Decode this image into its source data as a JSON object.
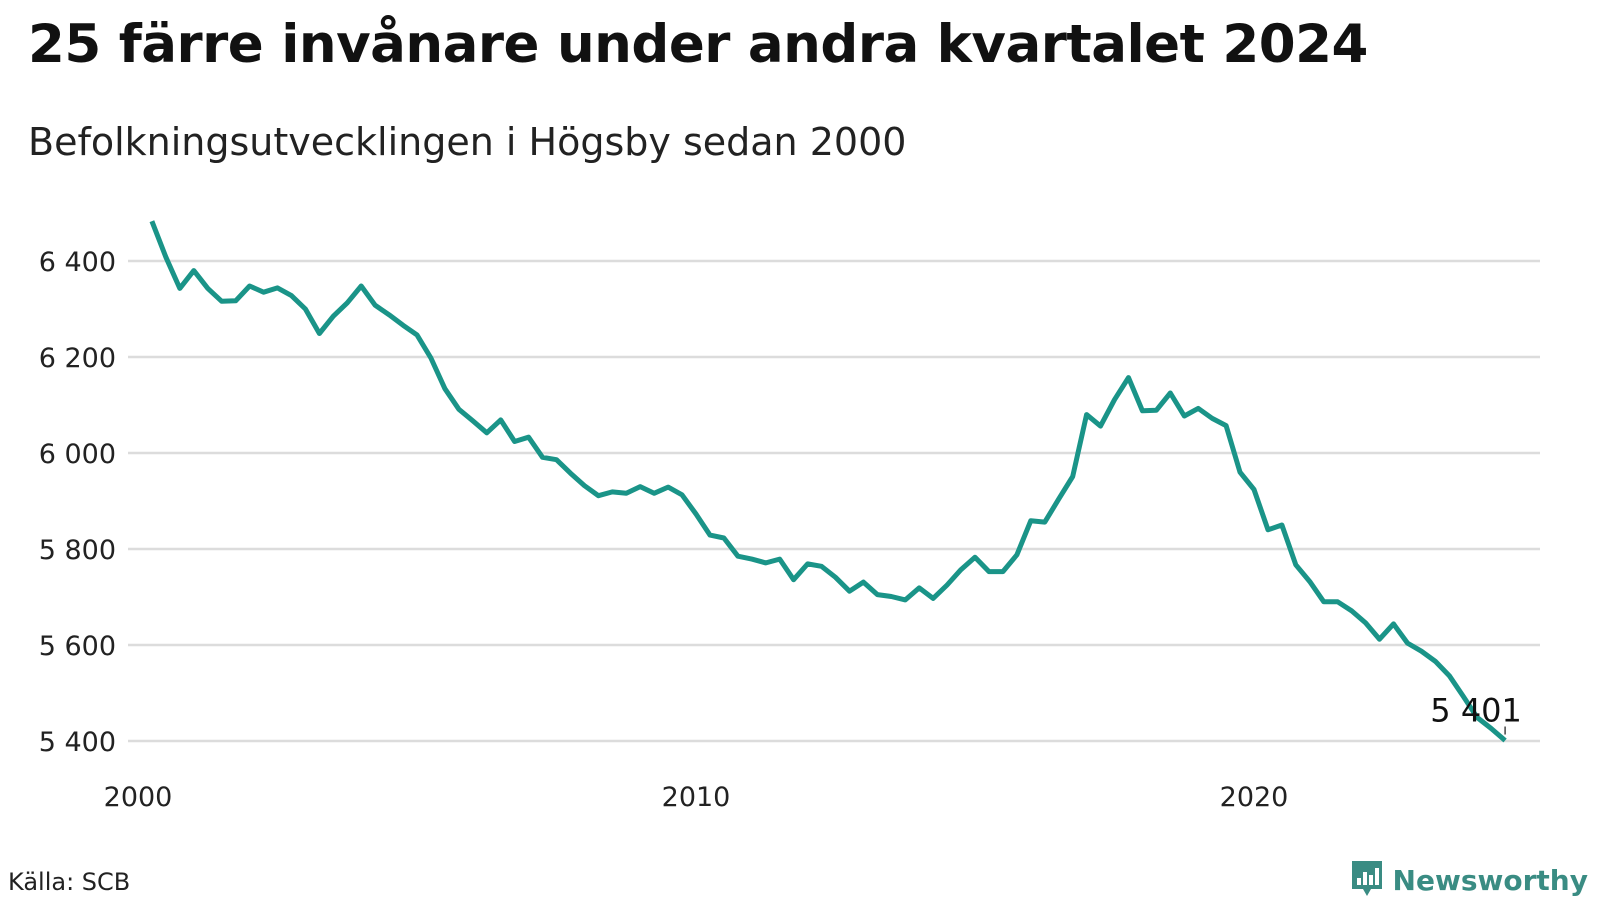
{
  "title": "25 färre invånare under andra kvartalet 2024",
  "subtitle": "Befolkningsutvecklingen i Högsby sedan 2000",
  "source": "Källa: SCB",
  "brand": {
    "name": "Newsworthy",
    "icon": "bar-chart-bubble-icon"
  },
  "colors": {
    "line": "#1a9488",
    "grid": "#dcdcdc",
    "text": "#222222",
    "brand": "#3a8c83"
  },
  "chart_data": {
    "type": "line",
    "title": "25 färre invånare under andra kvartalet 2024",
    "subtitle": "Befolkningsutvecklingen i Högsby sedan 2000",
    "xlabel": "",
    "ylabel": "",
    "x_ticks": [
      "2000",
      "2010",
      "2020"
    ],
    "y_ticks": [
      "6 400",
      "6 200",
      "6 000",
      "5 800",
      "5 600",
      "5 400"
    ],
    "ylim": [
      5370,
      6500
    ],
    "xlim": [
      2000,
      2025.25
    ],
    "grid": "horizontal",
    "legend": "none",
    "annotation": {
      "label": "5 401",
      "value": 5401
    },
    "series": [
      {
        "x": [
          2000.25,
          2000.5,
          2000.75,
          2001.0,
          2001.25,
          2001.5,
          2001.75,
          2002.0,
          2002.25,
          2002.5,
          2002.75,
          2003.0,
          2003.25,
          2003.5,
          2003.75,
          2004.0,
          2004.25,
          2004.5,
          2004.75,
          2005.0,
          2005.25,
          2005.5,
          2005.75,
          2006.0,
          2006.25,
          2006.5,
          2006.75,
          2007.0,
          2007.25,
          2007.5,
          2007.75,
          2008.0,
          2008.25,
          2008.5,
          2008.75,
          2009.0,
          2009.25,
          2009.5,
          2009.75,
          2010.0,
          2010.25,
          2010.5,
          2010.75,
          2011.0,
          2011.25,
          2011.5,
          2011.75,
          2012.0,
          2012.25,
          2012.5,
          2012.75,
          2013.0,
          2013.25,
          2013.5,
          2013.75,
          2014.0,
          2014.25,
          2014.5,
          2014.75,
          2015.0,
          2015.25,
          2015.5,
          2015.75,
          2016.0,
          2016.25,
          2016.5,
          2016.75,
          2017.0,
          2017.25,
          2017.5,
          2017.75,
          2018.0,
          2018.25,
          2018.5,
          2018.75,
          2019.0,
          2019.25,
          2019.5,
          2019.75,
          2020.0,
          2020.25,
          2020.5,
          2020.75,
          2021.0,
          2021.25,
          2021.5,
          2021.75,
          2022.0,
          2022.25,
          2022.5,
          2022.75,
          2023.0,
          2023.25,
          2023.5,
          2023.75,
          2024.0,
          2024.25,
          2024.5
        ],
        "values": [
          6483,
          6408,
          6343,
          6380,
          6343,
          6316,
          6317,
          6348,
          6335,
          6344,
          6328,
          6300,
          6249,
          6285,
          6313,
          6348,
          6308,
          6288,
          6266,
          6246,
          6198,
          6134,
          6091,
          6067,
          6042,
          6069,
          6024,
          6033,
          5991,
          5986,
          5958,
          5932,
          5911,
          5919,
          5916,
          5930,
          5916,
          5929,
          5913,
          5873,
          5829,
          5823,
          5785,
          5779,
          5771,
          5779,
          5736,
          5769,
          5764,
          5741,
          5712,
          5731,
          5705,
          5701,
          5694,
          5719,
          5697,
          5725,
          5757,
          5783,
          5753,
          5753,
          5788,
          5859,
          5856,
          5904,
          5951,
          6080,
          6056,
          6111,
          6157,
          6088,
          6089,
          6125,
          6077,
          6093,
          6072,
          6057,
          5960,
          5924,
          5840,
          5850,
          5767,
          5732,
          5690,
          5690,
          5671,
          5646,
          5612,
          5644,
          5604,
          5587,
          5566,
          5536,
          5493,
          5449,
          5426,
          5401
        ]
      }
    ]
  }
}
